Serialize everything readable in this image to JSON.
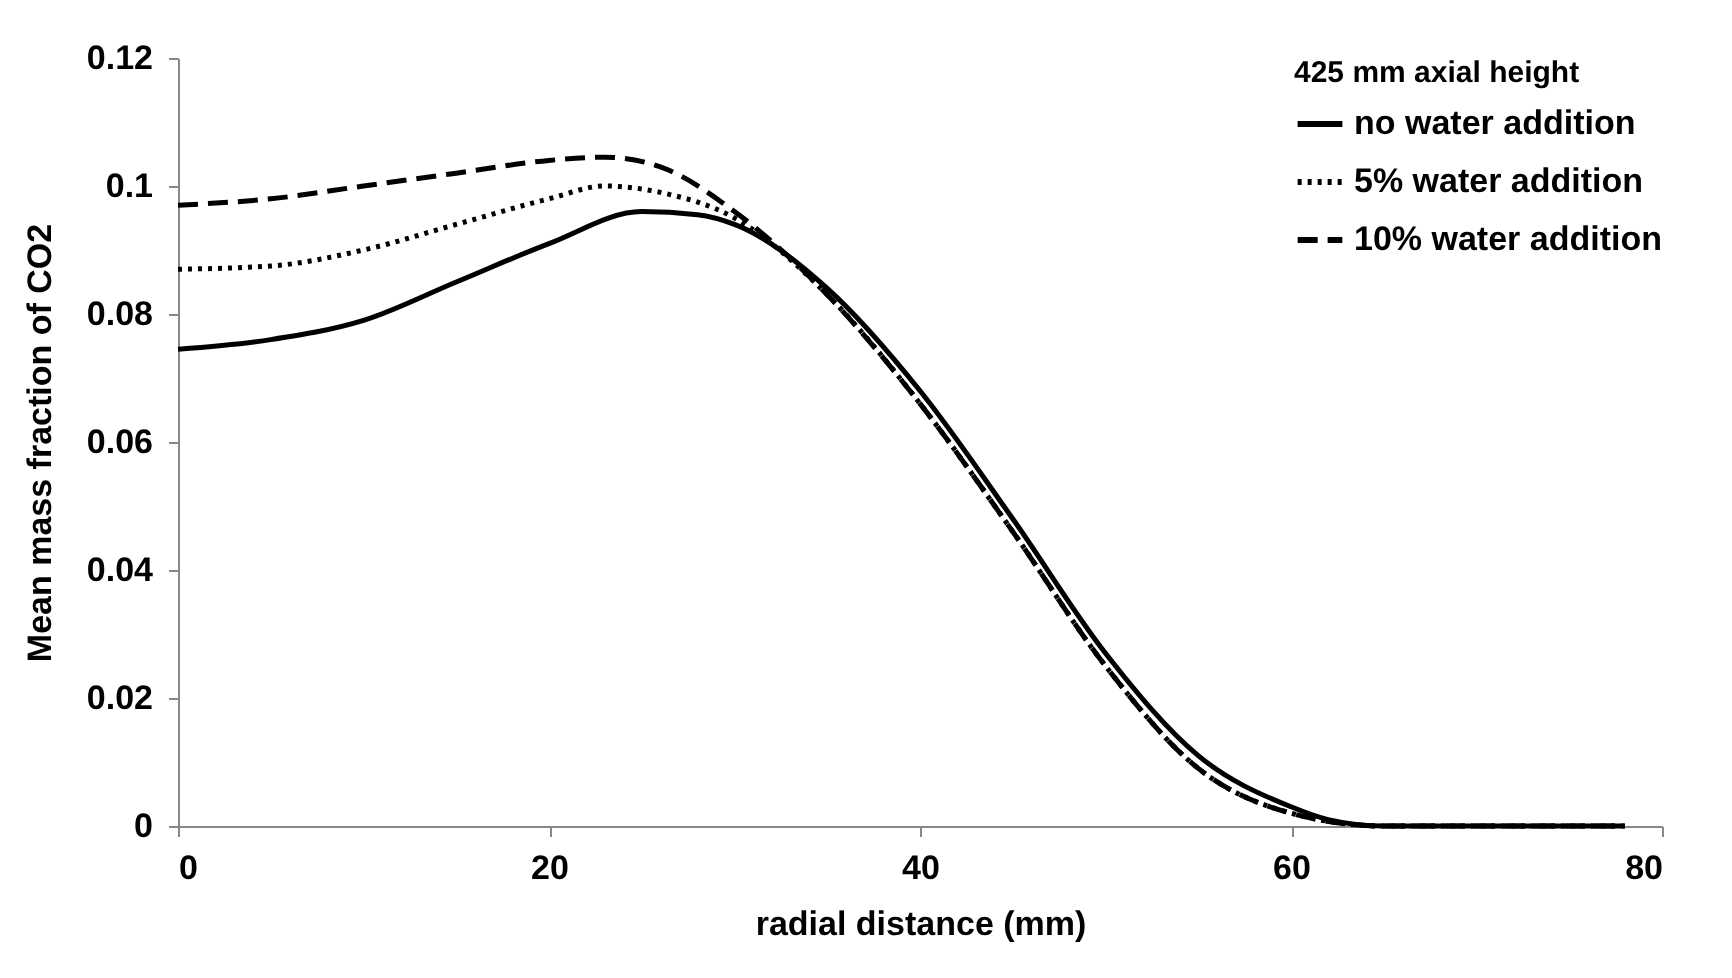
{
  "chart_data": {
    "type": "line",
    "xlabel": "radial distance  (mm)",
    "ylabel": "Mean mass fraction of CO2",
    "legend_title": "425 mm axial height",
    "xlim": [
      0,
      80
    ],
    "xticks": [
      0,
      20,
      40,
      60,
      80
    ],
    "ylim": [
      0,
      0.12
    ],
    "yticks": [
      0,
      0.02,
      0.04,
      0.06,
      0.08,
      0.1,
      0.12
    ],
    "grid": false,
    "legend": "top right",
    "marker": "none",
    "series": [
      {
        "name": "no water addition",
        "color": "#000000",
        "line_style": "solid",
        "x": [
          0,
          5,
          10,
          15,
          20,
          25,
          28,
          30,
          35,
          40,
          45,
          50,
          55,
          60,
          62,
          65,
          78
        ],
        "values": [
          0.0745,
          0.076,
          0.079,
          0.085,
          0.091,
          0.096,
          0.0955,
          0.094,
          0.084,
          0.068,
          0.048,
          0.027,
          0.011,
          0.003,
          0.001,
          0,
          0
        ]
      },
      {
        "name": "5% water addition",
        "color": "#000000",
        "line_style": "dotted",
        "x": [
          0,
          5,
          10,
          15,
          20,
          23,
          26,
          30,
          35,
          40,
          45,
          50,
          55,
          60,
          65,
          78
        ],
        "values": [
          0.087,
          0.0875,
          0.09,
          0.094,
          0.098,
          0.1,
          0.099,
          0.095,
          0.083,
          0.066,
          0.046,
          0.025,
          0.009,
          0.002,
          0,
          0
        ]
      },
      {
        "name": "10% water addition",
        "color": "#000000",
        "line_style": "dashed",
        "x": [
          0,
          5,
          10,
          15,
          20,
          23,
          26,
          30,
          35,
          40,
          45,
          50,
          55,
          60,
          65,
          78
        ],
        "values": [
          0.097,
          0.098,
          0.1,
          0.102,
          0.104,
          0.1045,
          0.103,
          0.096,
          0.083,
          0.066,
          0.046,
          0.025,
          0.009,
          0.002,
          0,
          0
        ]
      }
    ]
  }
}
